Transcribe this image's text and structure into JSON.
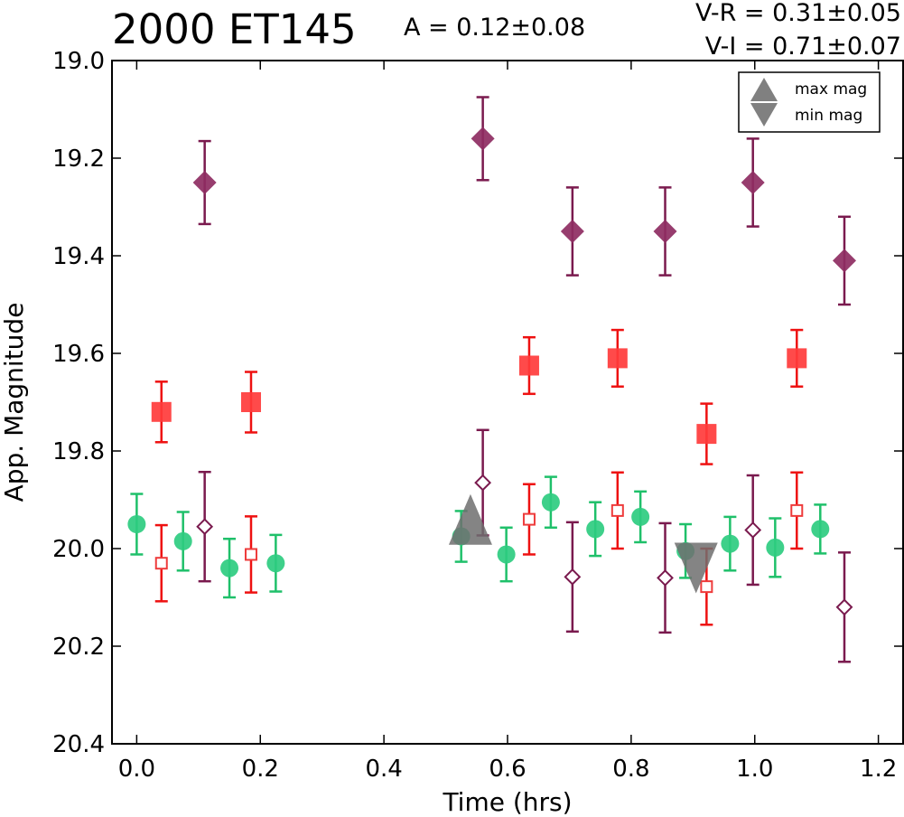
{
  "chart_data": {
    "type": "scatter",
    "title": "2000 ET145",
    "annotations": {
      "amplitude": "A  = 0.12±0.08",
      "v_r": "V-R = 0.31±0.05",
      "v_i": "V-I  = 0.71±0.07"
    },
    "xlabel": "Time (hrs)",
    "ylabel": "App. Magnitude",
    "xlim": [
      -0.04,
      1.24
    ],
    "ylim": [
      20.4,
      19.0
    ],
    "y_inverted": true,
    "xticks": [
      0.0,
      0.2,
      0.4,
      0.6,
      0.8,
      1.0,
      1.2
    ],
    "xtick_labels": [
      "0.0",
      "0.2",
      "0.4",
      "0.6",
      "0.8",
      "1.0",
      "1.2"
    ],
    "yticks": [
      19.0,
      19.2,
      19.4,
      19.6,
      19.8,
      20.0,
      20.2,
      20.4
    ],
    "ytick_labels": [
      "19.0",
      "19.2",
      "19.4",
      "19.6",
      "19.8",
      "20.0",
      "20.2",
      "20.4"
    ],
    "grid": false,
    "legend": {
      "position": "top-right",
      "entries": [
        {
          "label": "max mag",
          "marker": "triangle-up",
          "color": "#808080"
        },
        {
          "label": "min mag",
          "marker": "triangle-down",
          "color": "#808080"
        }
      ]
    },
    "series": [
      {
        "marker": "diamond",
        "filled": true,
        "color": "#8e2c62",
        "error_color": "#7a1a4e",
        "points": [
          {
            "x": 0.11,
            "y": 19.25,
            "err": 0.085
          },
          {
            "x": 0.56,
            "y": 19.16,
            "err": 0.085
          },
          {
            "x": 0.705,
            "y": 19.35,
            "err": 0.09
          },
          {
            "x": 0.855,
            "y": 19.35,
            "err": 0.09
          },
          {
            "x": 0.997,
            "y": 19.25,
            "err": 0.09
          },
          {
            "x": 1.145,
            "y": 19.41,
            "err": 0.09
          }
        ]
      },
      {
        "marker": "square",
        "filled": true,
        "color": "#ff3b3b",
        "error_color": "#ee1111",
        "points": [
          {
            "x": 0.04,
            "y": 19.72,
            "err": 0.062
          },
          {
            "x": 0.185,
            "y": 19.7,
            "err": 0.062
          },
          {
            "x": 0.635,
            "y": 19.625,
            "err": 0.058
          },
          {
            "x": 0.778,
            "y": 19.61,
            "err": 0.058
          },
          {
            "x": 0.922,
            "y": 19.765,
            "err": 0.062
          },
          {
            "x": 1.068,
            "y": 19.61,
            "err": 0.058
          }
        ]
      },
      {
        "marker": "circle",
        "filled": true,
        "color": "#2ecc80",
        "error_color": "#1fc06a",
        "points": [
          {
            "x": 0.0,
            "y": 19.95,
            "err": 0.062
          },
          {
            "x": 0.075,
            "y": 19.985,
            "err": 0.06
          },
          {
            "x": 0.15,
            "y": 20.04,
            "err": 0.06
          },
          {
            "x": 0.225,
            "y": 20.03,
            "err": 0.058
          },
          {
            "x": 0.525,
            "y": 19.975,
            "err": 0.052
          },
          {
            "x": 0.598,
            "y": 20.012,
            "err": 0.055
          },
          {
            "x": 0.67,
            "y": 19.905,
            "err": 0.052
          },
          {
            "x": 0.742,
            "y": 19.96,
            "err": 0.055
          },
          {
            "x": 0.815,
            "y": 19.935,
            "err": 0.052
          },
          {
            "x": 0.888,
            "y": 20.005,
            "err": 0.055
          },
          {
            "x": 0.96,
            "y": 19.99,
            "err": 0.055
          },
          {
            "x": 1.033,
            "y": 19.998,
            "err": 0.06
          },
          {
            "x": 1.106,
            "y": 19.96,
            "err": 0.05
          }
        ]
      },
      {
        "marker": "square",
        "filled": false,
        "color": "#ee3b3b",
        "error_color": "#ee1111",
        "points": [
          {
            "x": 0.04,
            "y": 20.03,
            "err": 0.078
          },
          {
            "x": 0.185,
            "y": 20.012,
            "err": 0.078
          },
          {
            "x": 0.635,
            "y": 19.94,
            "err": 0.072
          },
          {
            "x": 0.778,
            "y": 19.922,
            "err": 0.078
          },
          {
            "x": 0.922,
            "y": 20.078,
            "err": 0.078
          },
          {
            "x": 1.068,
            "y": 19.922,
            "err": 0.078
          }
        ]
      },
      {
        "marker": "diamond",
        "filled": false,
        "color": "#7a1a4e",
        "error_color": "#7a1a4e",
        "points": [
          {
            "x": 0.11,
            "y": 19.955,
            "err": 0.112
          },
          {
            "x": 0.56,
            "y": 19.865,
            "err": 0.108
          },
          {
            "x": 0.705,
            "y": 20.058,
            "err": 0.112
          },
          {
            "x": 0.855,
            "y": 20.06,
            "err": 0.112
          },
          {
            "x": 0.997,
            "y": 19.962,
            "err": 0.112
          },
          {
            "x": 1.145,
            "y": 20.12,
            "err": 0.112
          }
        ]
      },
      {
        "marker": "triangle-up",
        "filled": true,
        "color": "#6f6f6f",
        "alpha": 0.85,
        "points": [
          {
            "x": 0.54,
            "y": 19.955
          }
        ]
      },
      {
        "marker": "triangle-down",
        "filled": true,
        "color": "#6f6f6f",
        "alpha": 0.85,
        "points": [
          {
            "x": 0.905,
            "y": 20.025
          }
        ]
      }
    ]
  }
}
